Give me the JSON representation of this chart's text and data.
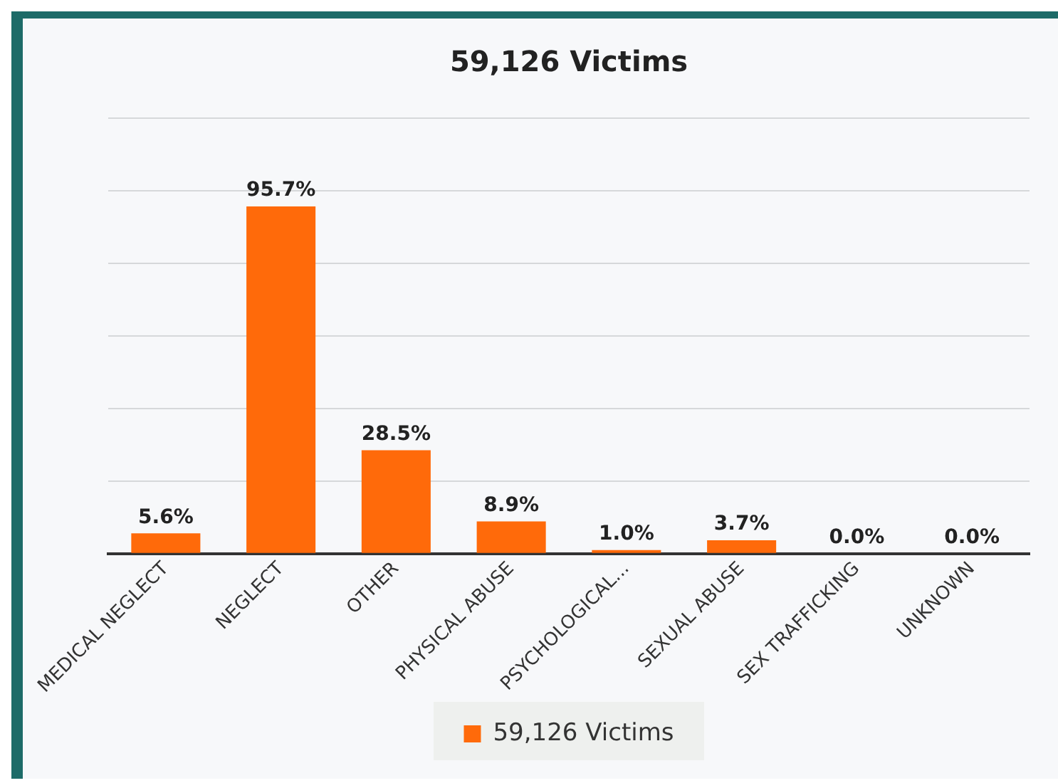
{
  "chart_data": {
    "type": "bar",
    "title": "59,126 Victims",
    "categories": [
      "MEDICAL NEGLECT",
      "NEGLECT",
      "OTHER",
      "PHYSICAL ABUSE",
      "PSYCHOLOGICAL...",
      "SEXUAL ABUSE",
      "SEX TRAFFICKING",
      "UNKNOWN"
    ],
    "series": [
      {
        "name": "59,126 Victims",
        "color": "#ff6a0a",
        "values": [
          5.6,
          95.7,
          28.5,
          8.9,
          1.0,
          3.7,
          0.0,
          0.0
        ],
        "value_labels": [
          "5.6%",
          "95.7%",
          "28.5%",
          "8.9%",
          "1.0%",
          "3.7%",
          "0.0%",
          "0.0%"
        ]
      }
    ],
    "ylim": [
      0,
      120
    ],
    "yticks": [
      {
        "value": 0,
        "label": null
      },
      {
        "value": 20,
        "label": null
      },
      {
        "value": 40,
        "label": null
      },
      {
        "value": 60,
        "label": null
      },
      {
        "value": 80,
        "label": null
      },
      {
        "value": 100,
        "label": null
      },
      {
        "value": 120,
        "label": null
      }
    ],
    "tick_labels": "x",
    "grid": "y",
    "legend": "bottom"
  }
}
